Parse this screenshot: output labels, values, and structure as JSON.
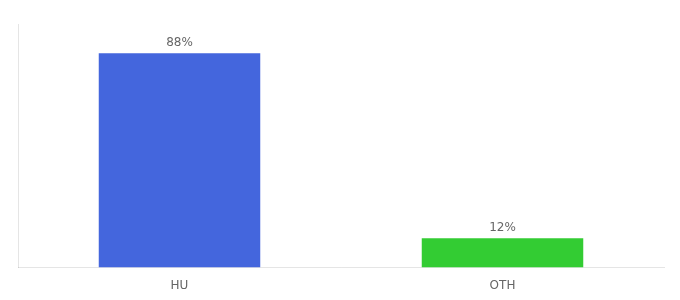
{
  "chart_data": {
    "type": "bar",
    "categories": [
      "HU",
      "OTH"
    ],
    "values": [
      88,
      12
    ],
    "value_labels": [
      "88%",
      "12%"
    ],
    "colors": [
      "#4466dd",
      "#33cc33"
    ],
    "ylim": [
      0,
      100
    ],
    "yticks": [],
    "grid": false,
    "data_labels": true,
    "tick_labels": "x"
  }
}
